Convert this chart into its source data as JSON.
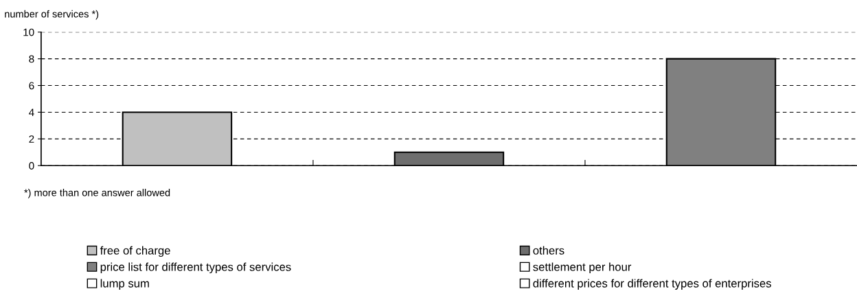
{
  "chart_data": {
    "type": "bar",
    "ylabel": "number of services *)",
    "annotations": [
      "*) more than one answer allowed"
    ],
    "categories": [
      null,
      null,
      null
    ],
    "series": [
      {
        "name": "free of charge",
        "color": "#c0c0c0",
        "values": [
          4,
          null,
          null
        ]
      },
      {
        "name": "price list for different types of services",
        "color": "#808080",
        "values": [
          null,
          null,
          8
        ]
      },
      {
        "name": "lump sum",
        "color": "#ffffff",
        "values": [
          null,
          null,
          null
        ]
      },
      {
        "name": "others",
        "color": "#6e6e6e",
        "values": [
          null,
          1,
          null
        ]
      },
      {
        "name": "settlement per hour",
        "color": "#ffffff",
        "values": [
          null,
          null,
          null
        ]
      },
      {
        "name": "different prices for different types of enterprises",
        "color": "#ffffff",
        "values": [
          null,
          null,
          null
        ]
      }
    ],
    "ylim": [
      0,
      10
    ],
    "yticks": [
      0,
      2,
      4,
      6,
      8,
      10
    ],
    "grid": "y",
    "legend": "bottom",
    "tick_labels": "y"
  }
}
